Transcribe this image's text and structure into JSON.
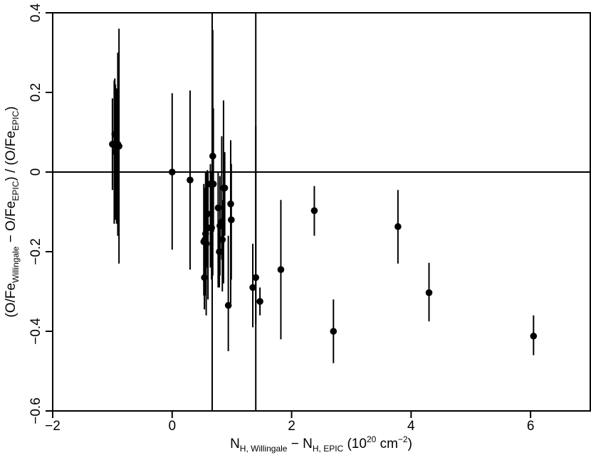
{
  "chart_data": {
    "type": "scatter",
    "title": "",
    "xlabel": {
      "main_1": "N",
      "sub_1": "H, Willingale",
      "mid": " − N",
      "sub_2": "H, EPIC",
      "unit_open": " (10",
      "sup_1": "20",
      "unit_mid": " cm",
      "sup_2": "−2",
      "unit_close": ")"
    },
    "ylabel": {
      "part_1": "(O/Fe",
      "sub_1": "Willingale",
      "part_2": " − O/Fe",
      "sub_2": "EPIC",
      "part_3": ") / (O/Fe",
      "sub_3": "EPIC",
      "part_4": ")"
    },
    "xlim": [
      -2,
      7
    ],
    "ylim": [
      -0.6,
      0.4
    ],
    "xticks": [
      -2,
      0,
      2,
      4,
      6
    ],
    "xtick_labels": [
      "−2",
      "0",
      "2",
      "4",
      "6"
    ],
    "yticks": [
      -0.6,
      -0.4,
      -0.2,
      0,
      0.2,
      0.4
    ],
    "ytick_labels": [
      "−0.6",
      "−0.4",
      "−0.2",
      "0",
      "0.2",
      "0.4"
    ],
    "reference_lines": {
      "horizontal_y": 0,
      "vertical_x": [
        0.67,
        1.4
      ]
    },
    "grid": false,
    "legend": "none",
    "points": [
      {
        "x": -1.0,
        "y": 0.07,
        "ylo": -0.045,
        "yhi": 0.185
      },
      {
        "x": -0.97,
        "y": 0.07,
        "ylo": -0.13,
        "yhi": 0.23
      },
      {
        "x": -0.96,
        "y": 0.095,
        "ylo": -0.04,
        "yhi": 0.235
      },
      {
        "x": -0.95,
        "y": 0.05,
        "ylo": -0.12,
        "yhi": 0.22
      },
      {
        "x": -0.93,
        "y": 0.06,
        "ylo": -0.13,
        "yhi": 0.21
      },
      {
        "x": -0.91,
        "y": 0.07,
        "ylo": -0.16,
        "yhi": 0.3
      },
      {
        "x": -0.89,
        "y": 0.065,
        "ylo": -0.23,
        "yhi": 0.36
      },
      {
        "x": 0.0,
        "y": 0.0,
        "ylo": -0.195,
        "yhi": 0.198
      },
      {
        "x": 0.3,
        "y": -0.02,
        "ylo": -0.245,
        "yhi": 0.205
      },
      {
        "x": 0.53,
        "y": -0.175,
        "ylo": -0.31,
        "yhi": -0.03
      },
      {
        "x": 0.54,
        "y": -0.265,
        "ylo": -0.345,
        "yhi": -0.11
      },
      {
        "x": 0.55,
        "y": -0.17,
        "ylo": -0.31,
        "yhi": -0.04
      },
      {
        "x": 0.56,
        "y": -0.155,
        "ylo": -0.31,
        "yhi": 0.0
      },
      {
        "x": 0.57,
        "y": -0.18,
        "ylo": -0.36,
        "yhi": 0.0
      },
      {
        "x": 0.59,
        "y": -0.105,
        "ylo": -0.24,
        "yhi": 0.005
      },
      {
        "x": 0.6,
        "y": -0.14,
        "ylo": -0.32,
        "yhi": 0.0
      },
      {
        "x": 0.64,
        "y": -0.03,
        "ylo": -0.24,
        "yhi": 0.02
      },
      {
        "x": 0.66,
        "y": -0.14,
        "ylo": -0.27,
        "yhi": 0.0
      },
      {
        "x": 0.68,
        "y": 0.04,
        "ylo": -0.26,
        "yhi": 0.357
      },
      {
        "x": 0.69,
        "y": -0.03,
        "ylo": -0.15,
        "yhi": 0.16
      },
      {
        "x": 0.77,
        "y": -0.09,
        "ylo": -0.29,
        "yhi": 0.0
      },
      {
        "x": 0.79,
        "y": -0.2,
        "ylo": -0.29,
        "yhi": -0.13
      },
      {
        "x": 0.8,
        "y": -0.135,
        "ylo": -0.26,
        "yhi": -0.01
      },
      {
        "x": 0.83,
        "y": -0.125,
        "ylo": -0.22,
        "yhi": 0.09
      },
      {
        "x": 0.84,
        "y": -0.17,
        "ylo": -0.3,
        "yhi": -0.07
      },
      {
        "x": 0.86,
        "y": -0.04,
        "ylo": -0.28,
        "yhi": 0.18
      },
      {
        "x": 0.88,
        "y": -0.04,
        "ylo": -0.16,
        "yhi": 0.05
      },
      {
        "x": 0.94,
        "y": -0.335,
        "ylo": -0.45,
        "yhi": -0.16
      },
      {
        "x": 0.98,
        "y": -0.08,
        "ylo": -0.33,
        "yhi": 0.08
      },
      {
        "x": 0.99,
        "y": -0.12,
        "ylo": -0.27,
        "yhi": 0.02
      },
      {
        "x": 1.35,
        "y": -0.29,
        "ylo": -0.39,
        "yhi": -0.18
      },
      {
        "x": 1.4,
        "y": -0.265,
        "ylo": -0.38,
        "yhi": 0.115
      },
      {
        "x": 1.47,
        "y": -0.325,
        "ylo": -0.36,
        "yhi": -0.29
      },
      {
        "x": 1.82,
        "y": -0.245,
        "ylo": -0.42,
        "yhi": -0.07
      },
      {
        "x": 2.38,
        "y": -0.097,
        "ylo": -0.16,
        "yhi": -0.035
      },
      {
        "x": 2.7,
        "y": -0.4,
        "ylo": -0.48,
        "yhi": -0.32
      },
      {
        "x": 3.78,
        "y": -0.137,
        "ylo": -0.23,
        "yhi": -0.045
      },
      {
        "x": 4.3,
        "y": -0.303,
        "ylo": -0.375,
        "yhi": -0.228
      },
      {
        "x": 6.05,
        "y": -0.412,
        "ylo": -0.46,
        "yhi": -0.36
      }
    ]
  }
}
